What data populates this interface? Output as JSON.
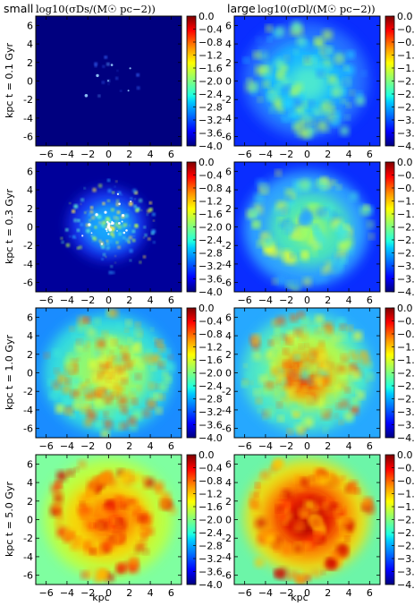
{
  "columns": [
    {
      "prefix": "small",
      "math_label": "log10(σDs/(M☉ pc−2))"
    },
    {
      "prefix": "large",
      "math_label": "log10(σDl/(M☉ pc−2))"
    }
  ],
  "rows": [
    {
      "ylabel": "kpc t = 0.1 Gyr"
    },
    {
      "ylabel": "kpc t = 0.3 Gyr"
    },
    {
      "ylabel": "kpc t = 1.0 Gyr"
    },
    {
      "ylabel": "kpc t = 5.0 Gyr"
    }
  ],
  "xlabel": "kpc",
  "chart_data": {
    "type": "heatmap",
    "layout": "4 rows x 2 columns of face-on surface density maps",
    "x_axis": {
      "label": "kpc",
      "range": [
        -7,
        7
      ],
      "ticks": [
        -6,
        -4,
        -2,
        0,
        2,
        4,
        6
      ]
    },
    "y_axis": {
      "range": [
        -7,
        7
      ],
      "ticks": [
        6,
        4,
        2,
        0,
        -2,
        -4,
        -6
      ]
    },
    "colorbar": {
      "range": [
        -4.0,
        0.0
      ],
      "ticks": [
        "0.0",
        "-0.4",
        "-0.8",
        "-1.2",
        "-1.6",
        "-2.0",
        "-2.4",
        "-2.8",
        "-3.2",
        "-3.6",
        "-4.0"
      ],
      "colormap": "jet",
      "colors": [
        "#00007f",
        "#0000ff",
        "#007fff",
        "#00ffff",
        "#7fff7f",
        "#ffff00",
        "#ff7f00",
        "#ff0000",
        "#7f0000"
      ]
    },
    "panels": [
      {
        "row": 0,
        "col": 0,
        "time_gyr": 0.1,
        "component": "small"
      },
      {
        "row": 0,
        "col": 1,
        "time_gyr": 0.1,
        "component": "large"
      },
      {
        "row": 1,
        "col": 0,
        "time_gyr": 0.3,
        "component": "small"
      },
      {
        "row": 1,
        "col": 1,
        "time_gyr": 0.3,
        "component": "large"
      },
      {
        "row": 2,
        "col": 0,
        "time_gyr": 1.0,
        "component": "small"
      },
      {
        "row": 2,
        "col": 1,
        "time_gyr": 1.0,
        "component": "large"
      },
      {
        "row": 3,
        "col": 0,
        "time_gyr": 5.0,
        "component": "small"
      },
      {
        "row": 3,
        "col": 1,
        "time_gyr": 5.0,
        "component": "large"
      }
    ]
  }
}
